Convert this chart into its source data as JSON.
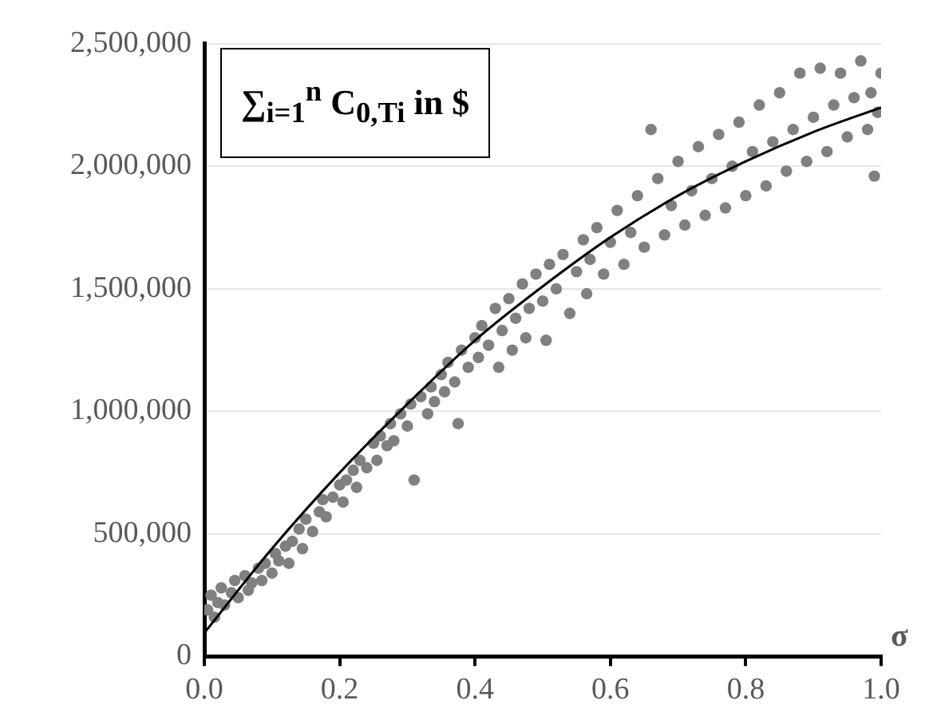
{
  "chart_data": {
    "type": "scatter",
    "xlabel": "σ",
    "ylabel": "∑$_{i=1}$$^{n}$ C$_{0,Ti}$ in $",
    "xlim": [
      0,
      1
    ],
    "xticks": [
      {
        "value": 0,
        "label": "0.0"
      },
      {
        "value": 0.2,
        "label": "0.2"
      },
      {
        "value": 0.4,
        "label": "0.4"
      },
      {
        "value": 0.6,
        "label": "0.6"
      },
      {
        "value": 0.8,
        "label": "0.8"
      },
      {
        "value": 1,
        "label": "1.0"
      }
    ],
    "ylim": [
      0,
      2500000
    ],
    "yticks": [
      0,
      {
        "value": 500000,
        "label": "500,000"
      },
      {
        "value": 1000000,
        "label": "1,000,000"
      },
      {
        "value": 1500000,
        "label": "1,500,000"
      },
      {
        "value": 2000000,
        "label": "2,000,000"
      },
      {
        "value": 2500000,
        "label": "2,500,000"
      }
    ],
    "grid": "y",
    "legend": false,
    "marker": "circle",
    "series": [
      {
        "color": "#808080",
        "x": [
          0.005,
          0.01,
          0.015,
          0.02,
          0.025,
          0.03,
          0.04,
          0.045,
          0.05,
          0.06,
          0.065,
          0.07,
          0.08,
          0.085,
          0.09,
          0.1,
          0.105,
          0.11,
          0.12,
          0.125,
          0.13,
          0.14,
          0.145,
          0.15,
          0.16,
          0.17,
          0.175,
          0.18,
          0.19,
          0.2,
          0.205,
          0.21,
          0.22,
          0.225,
          0.23,
          0.24,
          0.25,
          0.255,
          0.26,
          0.27,
          0.275,
          0.28,
          0.29,
          0.3,
          0.305,
          0.31,
          0.32,
          0.33,
          0.335,
          0.34,
          0.35,
          0.355,
          0.36,
          0.37,
          0.375,
          0.38,
          0.39,
          0.4,
          0.405,
          0.41,
          0.42,
          0.43,
          0.435,
          0.44,
          0.45,
          0.455,
          0.46,
          0.47,
          0.475,
          0.48,
          0.49,
          0.5,
          0.505,
          0.51,
          0.52,
          0.53,
          0.54,
          0.55,
          0.56,
          0.565,
          0.57,
          0.58,
          0.59,
          0.6,
          0.61,
          0.62,
          0.63,
          0.64,
          0.65,
          0.66,
          0.67,
          0.68,
          0.69,
          0.7,
          0.71,
          0.72,
          0.73,
          0.74,
          0.75,
          0.76,
          0.77,
          0.78,
          0.79,
          0.8,
          0.81,
          0.82,
          0.83,
          0.84,
          0.85,
          0.86,
          0.87,
          0.88,
          0.89,
          0.9,
          0.91,
          0.92,
          0.93,
          0.94,
          0.95,
          0.96,
          0.97,
          0.98,
          0.985,
          0.99,
          0.995,
          1.0
        ],
        "values": [
          190000,
          250000,
          160000,
          220000,
          280000,
          210000,
          260000,
          310000,
          240000,
          330000,
          270000,
          300000,
          360000,
          310000,
          380000,
          340000,
          420000,
          390000,
          450000,
          380000,
          470000,
          520000,
          440000,
          560000,
          510000,
          590000,
          640000,
          570000,
          650000,
          700000,
          630000,
          720000,
          760000,
          690000,
          800000,
          770000,
          870000,
          800000,
          900000,
          860000,
          950000,
          880000,
          990000,
          940000,
          1030000,
          720000,
          1060000,
          990000,
          1100000,
          1040000,
          1150000,
          1080000,
          1200000,
          1120000,
          950000,
          1250000,
          1180000,
          1300000,
          1220000,
          1350000,
          1270000,
          1420000,
          1180000,
          1330000,
          1460000,
          1250000,
          1380000,
          1520000,
          1300000,
          1420000,
          1560000,
          1450000,
          1290000,
          1600000,
          1500000,
          1640000,
          1400000,
          1570000,
          1700000,
          1480000,
          1620000,
          1750000,
          1560000,
          1690000,
          1820000,
          1600000,
          1730000,
          1880000,
          1670000,
          2150000,
          1950000,
          1720000,
          1840000,
          2020000,
          1760000,
          1900000,
          2080000,
          1800000,
          1950000,
          2130000,
          1830000,
          2000000,
          2180000,
          1880000,
          2060000,
          2250000,
          1920000,
          2100000,
          2300000,
          1980000,
          2150000,
          2380000,
          2020000,
          2200000,
          2400000,
          2060000,
          2250000,
          2380000,
          2120000,
          2280000,
          2430000,
          2150000,
          2300000,
          1960000,
          2220000,
          2380000
        ]
      },
      {
        "type": "line",
        "color": "#000000",
        "marker": "none",
        "x": [
          0,
          0.1,
          0.2,
          0.3,
          0.4,
          0.5,
          0.6,
          0.7,
          0.8,
          0.9,
          1.0
        ],
        "values": [
          96000,
          440000,
          750000,
          1030000,
          1290000,
          1510000,
          1710000,
          1880000,
          2020000,
          2140000,
          2240000
        ]
      }
    ]
  }
}
